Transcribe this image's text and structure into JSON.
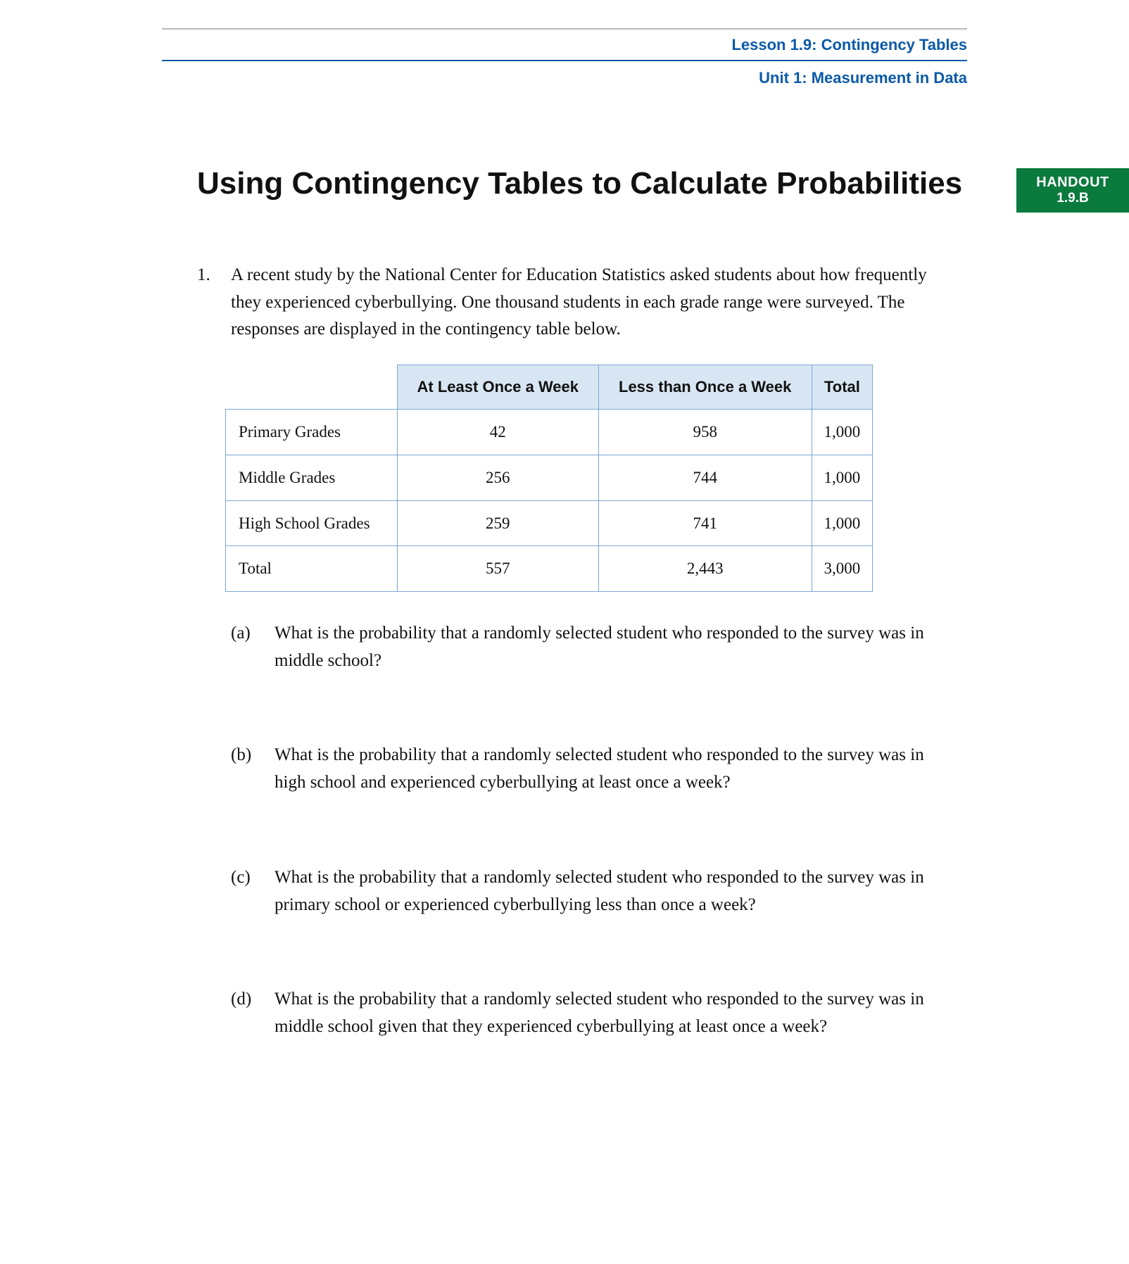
{
  "header": {
    "lesson": "Lesson 1.9: Contingency Tables",
    "unit": "Unit 1: Measurement in Data",
    "accent_color": "#0a5aa8"
  },
  "title": "Using Contingency Tables to Calculate Probabilities",
  "badge": {
    "line1": "HANDOUT",
    "line2": "1.9.B",
    "bg": "#0a7a3d"
  },
  "question": {
    "number": "1.",
    "prompt": "A recent study by the National Center for Education Statistics asked students about how frequently they experienced cyberbullying. One thousand students in each grade range were surveyed. The responses are displayed in the contingency table below."
  },
  "table": {
    "headers": [
      "At Least Once a Week",
      "Less than Once a Week",
      "Total"
    ],
    "header_bg": "#d8e6f3",
    "border_color": "#7aa8d4",
    "rows": [
      {
        "label": "Primary Grades",
        "cells": [
          "42",
          "958",
          "1,000"
        ]
      },
      {
        "label": "Middle Grades",
        "cells": [
          "256",
          "744",
          "1,000"
        ]
      },
      {
        "label": "High School Grades",
        "cells": [
          "259",
          "741",
          "1,000"
        ]
      },
      {
        "label": "Total",
        "cells": [
          "557",
          "2,443",
          "3,000"
        ]
      }
    ]
  },
  "subparts": [
    {
      "label": "(a)",
      "text": "What is the probability that a randomly selected student who responded to the survey was in middle school?"
    },
    {
      "label": "(b)",
      "text": "What is the probability that a randomly selected student who responded to the survey was in high school and experienced cyberbullying at least once a week?"
    },
    {
      "label": "(c)",
      "text": "What is the probability that a randomly selected student who responded to the survey was in primary school or experienced cyberbullying less than once a week?"
    },
    {
      "label": "(d)",
      "text": "What is the probability that a randomly selected student who responded to the survey was in middle school given that they experienced cyberbullying at least once a week?"
    }
  ]
}
